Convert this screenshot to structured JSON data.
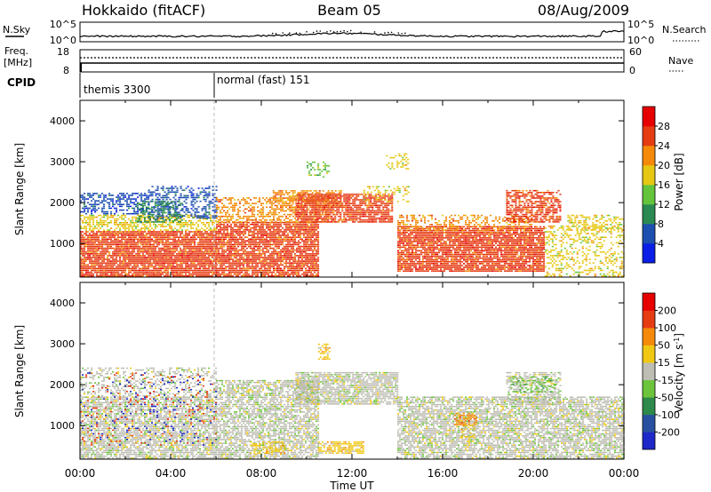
{
  "header": {
    "title": "Hokkaido (fitACF)",
    "beam": "Beam 05",
    "date": "08/Aug/2009"
  },
  "strips": {
    "nsky": {
      "label": "N.Sky",
      "tick_top": "10^5",
      "tick_bottom": "10^0",
      "right_label": "N.Search",
      "right_tick_top": "10^5",
      "right_tick_bottom": "10^0"
    },
    "freq": {
      "label": "Freq.",
      "unit": "[MHz]",
      "tick_top": "18",
      "tick_bottom": "8",
      "right_label": "Nave",
      "right_tick_top": "60",
      "right_tick_bottom": "0"
    },
    "cpid": {
      "label": "CPID",
      "modes": [
        {
          "name": "themis 3300",
          "start_hour": 0
        },
        {
          "name": "normal (fast) 151",
          "start_hour": 6
        }
      ]
    }
  },
  "chart_data": [
    {
      "type": "heatmap",
      "panel": "power",
      "ylabel": "Slant Range [km]",
      "xlim_hours": [
        0,
        24
      ],
      "ylim_km": [
        180,
        4500
      ],
      "yticks": [
        1000,
        2000,
        3000,
        4000
      ],
      "colorbar": {
        "label": "Power [dB]",
        "ticks": [
          "4",
          "8",
          "12",
          "16",
          "20",
          "24",
          "28"
        ],
        "colors": [
          "#0a1ee6",
          "#1d4fb0",
          "#2b8a52",
          "#64c43c",
          "#e6c814",
          "#f58a0a",
          "#e63c14",
          "#e60000"
        ]
      },
      "regions": [
        {
          "h0": 0.0,
          "h1": 6.0,
          "r0": 180,
          "r1": 1300,
          "c": 6,
          "d": 0.9
        },
        {
          "h0": 0.0,
          "h1": 6.0,
          "r0": 1300,
          "r1": 1700,
          "c": 4,
          "d": 0.55
        },
        {
          "h0": 0.0,
          "h1": 3.0,
          "r0": 1700,
          "r1": 2200,
          "c": 1,
          "d": 0.5
        },
        {
          "h0": 3.0,
          "h1": 6.0,
          "r0": 1600,
          "r1": 2400,
          "c": 1,
          "d": 0.45
        },
        {
          "h0": 2.5,
          "h1": 4.5,
          "r0": 1500,
          "r1": 2000,
          "c": 2,
          "d": 0.45
        },
        {
          "h0": 6.0,
          "h1": 10.5,
          "r0": 180,
          "r1": 1500,
          "c": 6,
          "d": 0.85
        },
        {
          "h0": 6.0,
          "h1": 11.0,
          "r0": 1500,
          "r1": 2100,
          "c": 5,
          "d": 0.5
        },
        {
          "h0": 8.5,
          "h1": 11.5,
          "r0": 1900,
          "r1": 2300,
          "c": 5,
          "d": 0.6
        },
        {
          "h0": 9.5,
          "h1": 13.8,
          "r0": 1500,
          "r1": 2200,
          "c": 6,
          "d": 0.8
        },
        {
          "h0": 12.5,
          "h1": 14.5,
          "r0": 2000,
          "r1": 2400,
          "c": 4,
          "d": 0.3
        },
        {
          "h0": 10.0,
          "h1": 11.0,
          "r0": 2600,
          "r1": 3000,
          "c": 3,
          "d": 0.35
        },
        {
          "h0": 13.5,
          "h1": 14.5,
          "r0": 2800,
          "r1": 3200,
          "c": 4,
          "d": 0.35
        },
        {
          "h0": 14.0,
          "h1": 20.5,
          "r0": 300,
          "r1": 1400,
          "c": 6,
          "d": 0.88
        },
        {
          "h0": 14.0,
          "h1": 20.0,
          "r0": 1300,
          "r1": 1700,
          "c": 5,
          "d": 0.4
        },
        {
          "h0": 18.8,
          "h1": 21.2,
          "r0": 1500,
          "r1": 2300,
          "c": 6,
          "d": 0.65
        },
        {
          "h0": 20.5,
          "h1": 24.0,
          "r0": 180,
          "r1": 1400,
          "c": 4,
          "d": 0.35
        },
        {
          "h0": 21.5,
          "h1": 24.0,
          "r0": 1300,
          "r1": 1700,
          "c": 4,
          "d": 0.4
        }
      ]
    },
    {
      "type": "heatmap",
      "panel": "velocity",
      "ylabel": "Slant Range [km]",
      "xlabel": "Time UT",
      "xlim_hours": [
        0,
        24
      ],
      "ylim_km": [
        180,
        4500
      ],
      "yticks": [
        1000,
        2000,
        3000,
        4000
      ],
      "xticks": [
        "00:00",
        "04:00",
        "08:00",
        "12:00",
        "16:00",
        "20:00",
        "00:00"
      ],
      "colorbar": {
        "label": "Velocity [m s",
        "label_sup": "-1",
        "label_end": "]",
        "ticks": [
          "200",
          "100",
          "50",
          "15",
          "-15",
          "-50",
          "-100",
          "-200"
        ],
        "colors": [
          "#1e28c8",
          "#2850a0",
          "#2d8a4a",
          "#6cc43c",
          "#bebeb4",
          "#f0c814",
          "#f58a0a",
          "#e63c14",
          "#e60000"
        ]
      },
      "regions": [
        {
          "h0": 0.0,
          "h1": 6.0,
          "r0": 180,
          "r1": 1700,
          "c": 4,
          "d": 0.75
        },
        {
          "h0": 0.0,
          "h1": 6.0,
          "r0": 1700,
          "r1": 2400,
          "c": 4,
          "d": 0.35
        },
        {
          "h0": 6.0,
          "h1": 10.5,
          "r0": 180,
          "r1": 2100,
          "c": 4,
          "d": 0.7
        },
        {
          "h0": 9.5,
          "h1": 14.0,
          "r0": 1500,
          "r1": 2300,
          "c": 4,
          "d": 0.8
        },
        {
          "h0": 14.0,
          "h1": 24.0,
          "r0": 180,
          "r1": 1700,
          "c": 4,
          "d": 0.75
        },
        {
          "h0": 18.8,
          "h1": 21.2,
          "r0": 1500,
          "r1": 2300,
          "c": 4,
          "d": 0.5
        },
        {
          "h0": 19.0,
          "h1": 21.0,
          "r0": 1800,
          "r1": 2200,
          "c": 3,
          "d": 0.35
        },
        {
          "h0": 10.5,
          "h1": 12.5,
          "r0": 300,
          "r1": 600,
          "c": 5,
          "d": 0.75
        },
        {
          "h0": 10.5,
          "h1": 11.0,
          "r0": 2600,
          "r1": 3000,
          "c": 5,
          "d": 0.4
        },
        {
          "h0": 7.5,
          "h1": 9.0,
          "r0": 300,
          "r1": 600,
          "c": 5,
          "d": 0.5
        },
        {
          "h0": 16.5,
          "h1": 17.5,
          "r0": 1000,
          "r1": 1300,
          "c": 6,
          "d": 0.6
        },
        {
          "h0": 16.8,
          "h1": 17.4,
          "r0": 700,
          "r1": 1000,
          "c": 5,
          "d": 0.5
        },
        {
          "h0": 0.0,
          "h1": 6.0,
          "r0": 500,
          "r1": 2300,
          "c": 0,
          "d": 0.05
        },
        {
          "h0": 0.0,
          "h1": 6.0,
          "r0": 500,
          "r1": 2300,
          "c": 7,
          "d": 0.05
        }
      ]
    }
  ]
}
